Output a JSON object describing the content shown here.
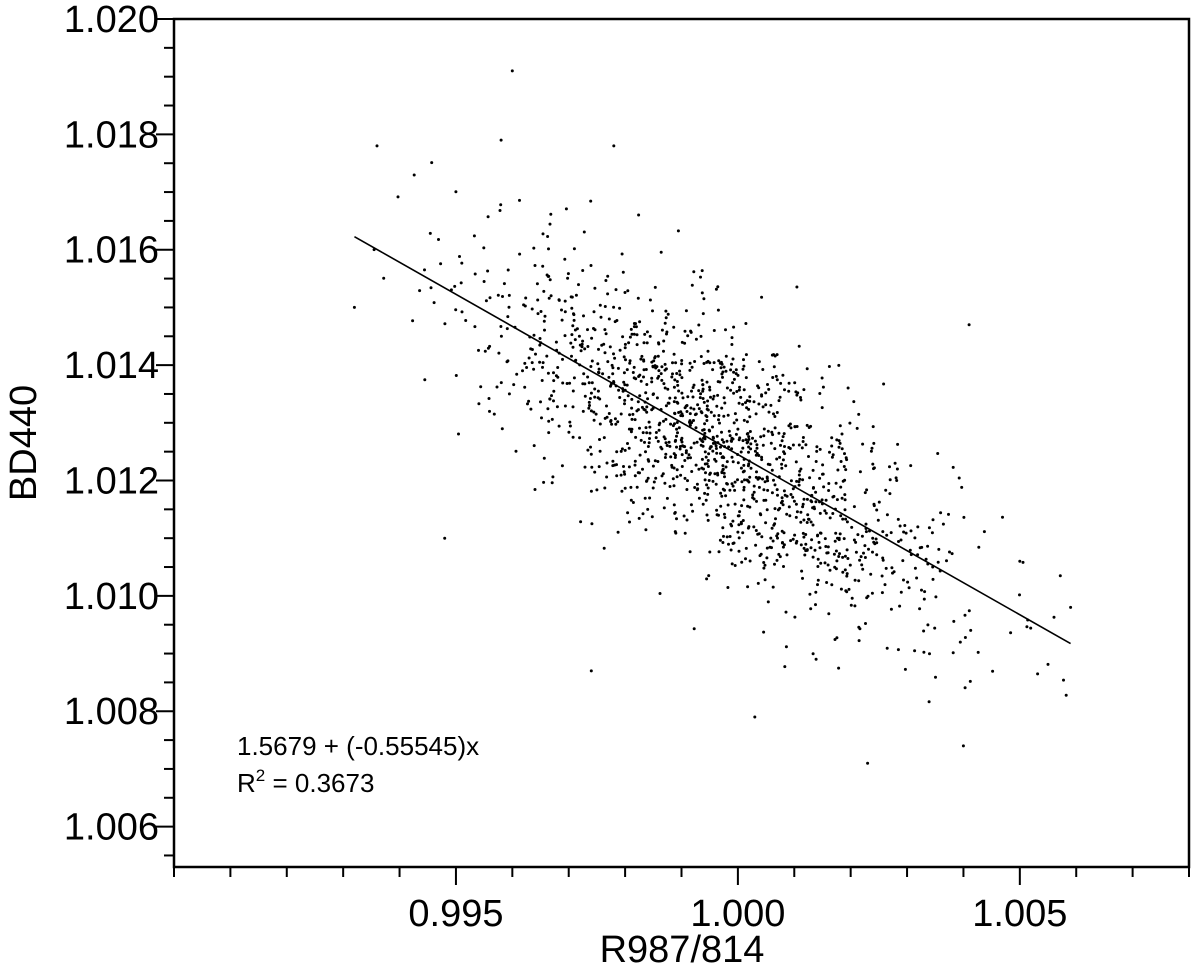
{
  "chart_data": {
    "type": "scatter",
    "title": "",
    "xlabel": "R987/814",
    "ylabel": "BD440",
    "xlim": [
      0.99,
      1.008
    ],
    "ylim": [
      1.0053,
      1.02
    ],
    "x_ticks": [
      0.995,
      1.0,
      1.005
    ],
    "x_tick_labels": [
      "0.995",
      "1.000",
      "1.005"
    ],
    "x_minor_step": 0.001,
    "y_ticks": [
      1.006,
      1.008,
      1.01,
      1.012,
      1.014,
      1.016,
      1.018,
      1.02
    ],
    "y_tick_labels": [
      "1.006",
      "1.008",
      "1.010",
      "1.012",
      "1.014",
      "1.016",
      "1.018",
      "1.020"
    ],
    "y_minor_step": 0.0005,
    "grid": false,
    "legend": "none",
    "fit": {
      "intercept": 1.5679,
      "slope": -0.55545,
      "x_range": [
        0.9932,
        1.0059
      ],
      "r_squared": 0.3673
    },
    "annotation": {
      "equation": "1.5679 + (-0.55545)x",
      "r2_prefix": "R",
      "r2_sup": "2",
      "r2_value": " = 0.3673"
    },
    "points": {
      "count": 1500,
      "x_center": 0.99965,
      "x_spread": 0.0021,
      "y_residual_spread": 0.00105,
      "x_min": 0.9932,
      "x_max": 1.0059,
      "y_min": 1.0071,
      "y_max": 1.0191,
      "outliers": [
        [
          0.996,
          1.0191
        ],
        [
          0.9932,
          1.015
        ],
        [
          0.9936,
          1.0178
        ],
        [
          0.9958,
          1.0179
        ],
        [
          0.9978,
          1.0178
        ],
        [
          1.0023,
          1.0071
        ],
        [
          1.0059,
          1.0098
        ],
        [
          1.005,
          1.0106
        ],
        [
          1.0041,
          1.0147
        ],
        [
          0.9974,
          1.0087
        ],
        [
          1.0003,
          1.0079
        ],
        [
          0.9948,
          1.011
        ],
        [
          1.004,
          1.0074
        ]
      ]
    }
  }
}
